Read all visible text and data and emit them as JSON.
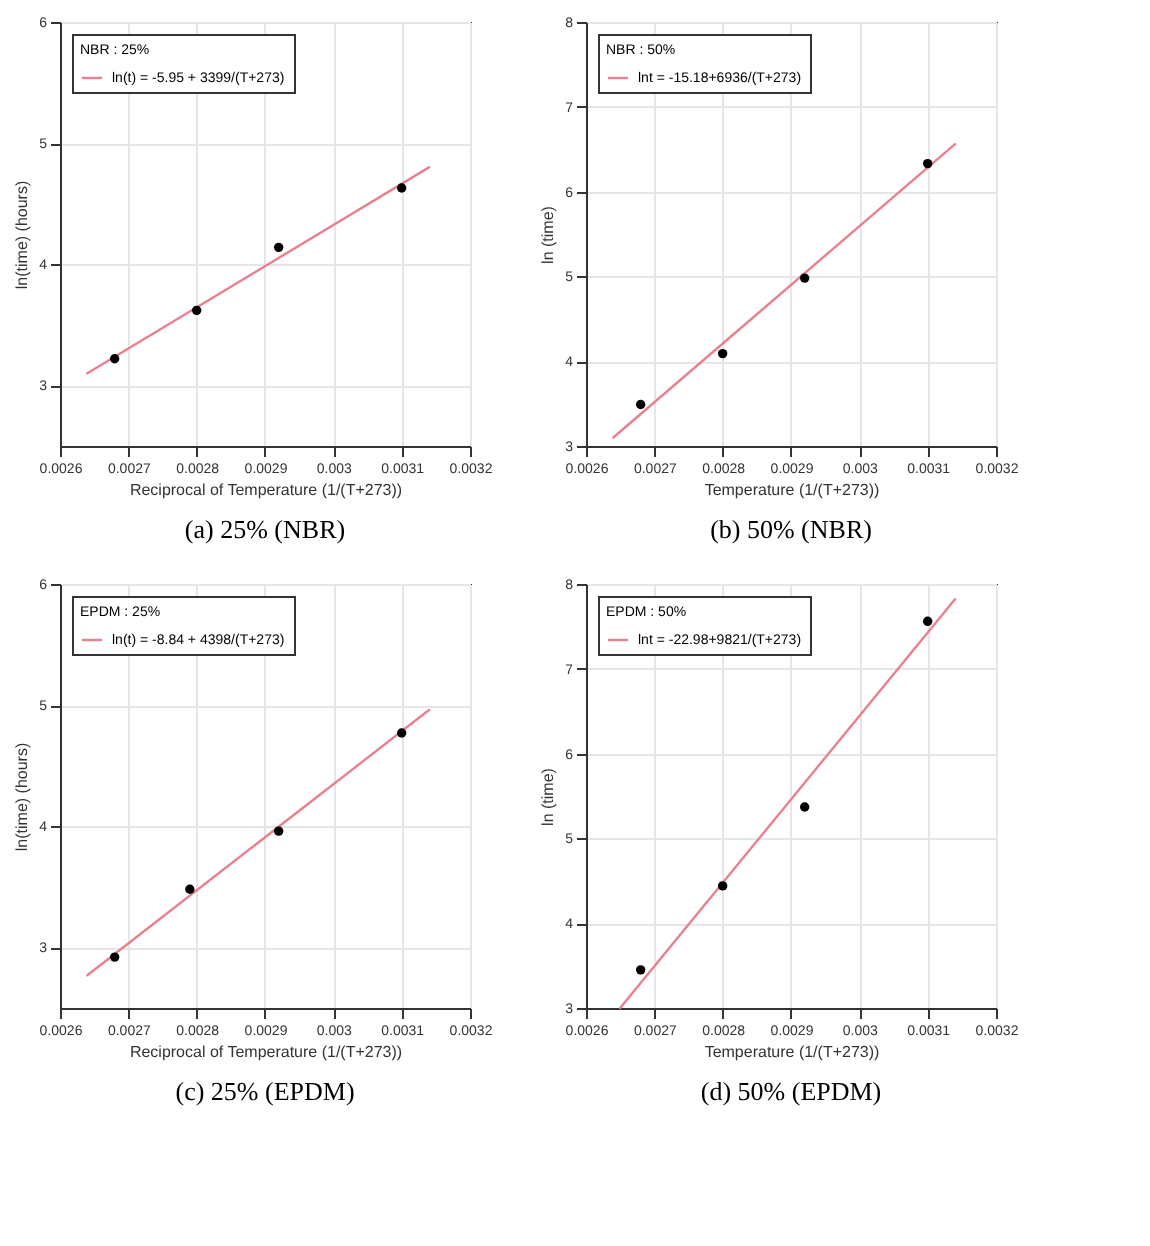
{
  "chart_data": [
    {
      "type": "scatter",
      "title": "(a) 25% (NBR)",
      "xlabel": "Reciprocal of Temperature (1/(T+273))",
      "ylabel": "ln(time) (hours)",
      "legend_title": "NBR : 25%",
      "xlim": [
        0.0026,
        0.0032
      ],
      "xticks": [
        0.0026,
        0.0027,
        0.0028,
        0.0029,
        0.003,
        0.0031,
        0.0032
      ],
      "ylim": [
        2.5,
        6
      ],
      "yticks": [
        3,
        4,
        5,
        6
      ],
      "grid": true,
      "legend": "top left",
      "marker": "circle",
      "series": [
        {
          "type": "line",
          "marker": "none",
          "name": "ln(t) = -5.95 + 3399/(T+273)",
          "color": "#e8808f",
          "x": [
            0.00264,
            0.00314
          ],
          "values": [
            3.1,
            4.8
          ]
        },
        {
          "color": "#000000",
          "x": [
            0.00268,
            0.0028,
            0.00292,
            0.0031
          ],
          "values": [
            3.22,
            3.62,
            4.14,
            4.63
          ]
        }
      ]
    },
    {
      "type": "scatter",
      "title": "(b) 50% (NBR)",
      "xlabel": "Temperature (1/(T+273))",
      "ylabel": "ln (time)",
      "legend_title": "NBR : 50%",
      "xlim": [
        0.0026,
        0.0032
      ],
      "xticks": [
        0.0026,
        0.0027,
        0.0028,
        0.0029,
        0.003,
        0.0031,
        0.0032
      ],
      "ylim": [
        3,
        8
      ],
      "yticks": [
        3,
        4,
        5,
        6,
        7,
        8
      ],
      "grid": true,
      "legend": "top left",
      "marker": "circle",
      "series": [
        {
          "type": "line",
          "marker": "none",
          "name": "lnt = -15.18+6936/(T+273)",
          "color": "#e8808f",
          "x": [
            0.00264,
            0.00314
          ],
          "values": [
            3.1,
            6.56
          ]
        },
        {
          "color": "#000000",
          "x": [
            0.00268,
            0.0028,
            0.00292,
            0.0031
          ],
          "values": [
            3.49,
            4.09,
            4.98,
            6.33
          ]
        }
      ]
    },
    {
      "type": "scatter",
      "title": "(c) 25% (EPDM)",
      "xlabel": "Reciprocal of Temperature (1/(T+273))",
      "ylabel": "ln(time) (hours)",
      "legend_title": "EPDM : 25%",
      "xlim": [
        0.0026,
        0.0032
      ],
      "xticks": [
        0.0026,
        0.0027,
        0.0028,
        0.0029,
        0.003,
        0.0031,
        0.0032
      ],
      "ylim": [
        2.5,
        6
      ],
      "yticks": [
        3,
        4,
        5,
        6
      ],
      "grid": true,
      "legend": "top left",
      "marker": "circle",
      "series": [
        {
          "type": "line",
          "marker": "none",
          "name": "ln(t) = -8.84 + 4398/(T+273)",
          "color": "#e8808f",
          "x": [
            0.00264,
            0.00314
          ],
          "values": [
            2.77,
            4.96
          ]
        },
        {
          "color": "#000000",
          "x": [
            0.00268,
            0.00279,
            0.00292,
            0.0031
          ],
          "values": [
            2.92,
            3.48,
            3.96,
            4.77
          ]
        }
      ]
    },
    {
      "type": "scatter",
      "title": "(d) 50% (EPDM)",
      "xlabel": "Temperature (1/(T+273))",
      "ylabel": "ln (time)",
      "legend_title": "EPDM : 50%",
      "xlim": [
        0.0026,
        0.0032
      ],
      "xticks": [
        0.0026,
        0.0027,
        0.0028,
        0.0029,
        0.003,
        0.0031,
        0.0032
      ],
      "ylim": [
        3,
        8
      ],
      "yticks": [
        3,
        4,
        5,
        6,
        7,
        8
      ],
      "grid": true,
      "legend": "top left",
      "marker": "circle",
      "series": [
        {
          "type": "line",
          "marker": "none",
          "name": "lnt = -22.98+9821/(T+273)",
          "color": "#e8808f",
          "x": [
            0.00265,
            0.00314
          ],
          "values": [
            3.0,
            7.82
          ]
        },
        {
          "color": "#000000",
          "x": [
            0.00268,
            0.0028,
            0.00292,
            0.0031
          ],
          "values": [
            3.45,
            4.44,
            5.37,
            7.56
          ]
        }
      ]
    }
  ]
}
